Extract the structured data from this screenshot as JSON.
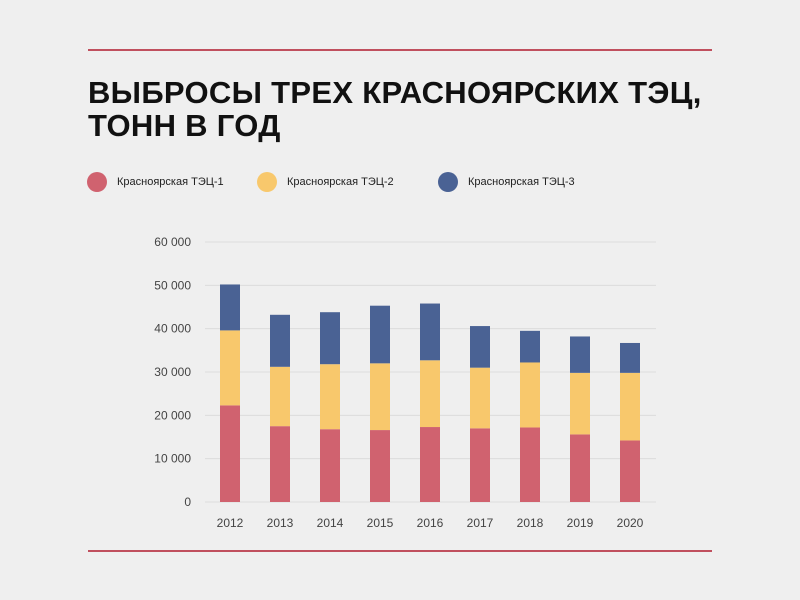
{
  "chart_data": {
    "type": "bar",
    "stacked": true,
    "title_lines": [
      "ВЫБРОСЫ ТРЕХ КРАСНОЯРСКИХ ТЭЦ,",
      "ТОНН В ГОД"
    ],
    "categories": [
      "2012",
      "2013",
      "2014",
      "2015",
      "2016",
      "2017",
      "2018",
      "2019",
      "2020"
    ],
    "series": [
      {
        "name": "Красноярская ТЭЦ-1",
        "color": "#d0626f",
        "values": [
          22300,
          17500,
          16800,
          16600,
          17300,
          17000,
          17200,
          15600,
          14200
        ]
      },
      {
        "name": "Красноярская ТЭЦ-2",
        "color": "#f8c86c",
        "values": [
          17300,
          13700,
          15000,
          15400,
          15400,
          14000,
          15000,
          14200,
          15600
        ]
      },
      {
        "name": "Красноярская ТЭЦ-3",
        "color": "#4a6294",
        "values": [
          10600,
          12000,
          12000,
          13300,
          13100,
          9600,
          7300,
          8400,
          6900
        ]
      }
    ],
    "ylim": [
      0,
      60000
    ],
    "yticks": [
      "0",
      "10 000",
      "20 000",
      "30 000",
      "40 000",
      "50 000",
      "60 000"
    ],
    "grid": true,
    "legend": "top",
    "xlabel": "",
    "ylabel": ""
  }
}
